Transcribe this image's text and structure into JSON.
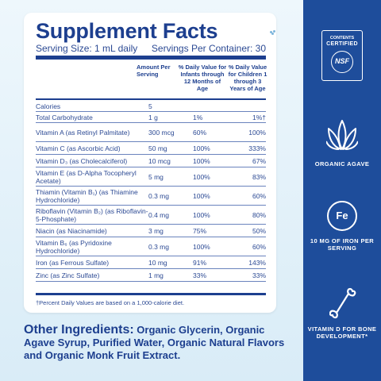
{
  "supplement_facts": {
    "title": "Supplement Facts",
    "serving_size": "Serving Size: 1 mL daily",
    "servings_per_container": "Servings Per Container: 30",
    "column_headers": {
      "amount": "Amount Per Serving",
      "infants": "% Daily Value for Infants through 12 Months of Age",
      "children": "% Daily Value for Children 1 through 3 Years of Age"
    },
    "rows": [
      {
        "name": "Calories",
        "amount": "5",
        "infants": "",
        "children": ""
      },
      {
        "name": "Total Carbohydrate",
        "amount": "1 g",
        "infants": "1%",
        "children": "1%†"
      },
      {
        "name": "Vitamin A (as Retinyl Palmitate)",
        "amount": "300 mcg",
        "infants": "60%",
        "children": "100%"
      },
      {
        "name": "Vitamin C (as Ascorbic Acid)",
        "amount": "50 mg",
        "infants": "100%",
        "children": "333%"
      },
      {
        "name": "Vitamin D₃ (as Cholecalciferol)",
        "amount": "10 mcg",
        "infants": "100%",
        "children": "67%"
      },
      {
        "name": "Vitamin E (as D-Alpha Tocopheryl Acetate)",
        "amount": "5 mg",
        "infants": "100%",
        "children": "83%"
      },
      {
        "name": "Thiamin (Vitamin B₁) (as Thiamine Hydrochloride)",
        "amount": "0.3 mg",
        "infants": "100%",
        "children": "60%"
      },
      {
        "name": "Riboflavin (Vitamin B₂) (as Riboflavin-5-Phosphate)",
        "amount": "0.4 mg",
        "infants": "100%",
        "children": "80%"
      },
      {
        "name": "Niacin (as Niacinamide)",
        "amount": "3 mg",
        "infants": "75%",
        "children": "50%"
      },
      {
        "name": "Vitamin B₆ (as Pyridoxine Hydrochloride)",
        "amount": "0.3 mg",
        "infants": "100%",
        "children": "60%"
      },
      {
        "name": "Iron (as Ferrous Sulfate)",
        "amount": "10 mg",
        "infants": "91%",
        "children": "143%"
      },
      {
        "name": "Zinc (as Zinc Sulfate)",
        "amount": "1 mg",
        "infants": "33%",
        "children": "33%"
      }
    ],
    "footnote": "†Percent Daily Values are based on a 1,000-calorie diet."
  },
  "other_ingredients": {
    "label": "Other Ingredients:",
    "text": " Organic Glycerin, Organic Agave Syrup, Purified Water, Organic Natural Flavors and Organic Monk Fruit Extract."
  },
  "sidebar": {
    "badge_line1": "CONTENTS",
    "badge_line2": "CERTIFIED",
    "badge_logo": "NSF",
    "feature_agave": "ORGANIC AGAVE",
    "iron_symbol": "Fe",
    "feature_iron": "10 MG OF IRON PER SERVING",
    "feature_vitd": "VITAMIN D FOR BONE DEVELOPMENT*"
  },
  "colors": {
    "navy": "#1d3f8f",
    "sidebar_blue": "#1e4d9b",
    "background": "#e9f4fb"
  },
  "icons": [
    "nsf-badge-icon",
    "agave-plant-icon",
    "iron-fe-icon",
    "bone-icon"
  ]
}
